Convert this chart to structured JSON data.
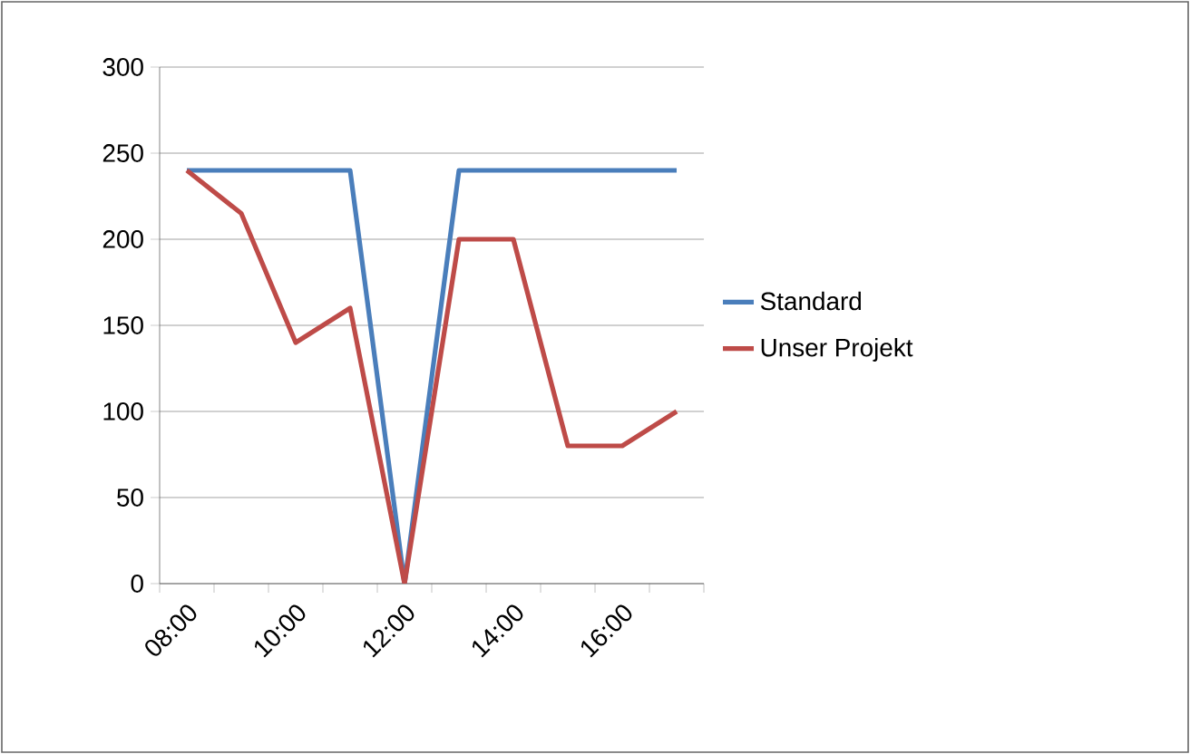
{
  "chart_data": {
    "type": "line",
    "categories": [
      "08:00",
      null,
      "10:00",
      null,
      "12:00",
      null,
      "14:00",
      null,
      "16:00",
      null
    ],
    "series": [
      {
        "name": "Standard",
        "color": "#4a7ebb",
        "values": [
          240,
          240,
          240,
          240,
          0,
          240,
          240,
          240,
          240,
          240
        ]
      },
      {
        "name": "Unser Projekt",
        "color": "#be4b48",
        "values": [
          240,
          215,
          140,
          160,
          0,
          200,
          200,
          80,
          80,
          100
        ]
      }
    ],
    "ylim": [
      0,
      300
    ],
    "yticks": [
      0,
      50,
      100,
      150,
      200,
      250,
      300
    ],
    "grid": "y",
    "legend": "right",
    "marker": "none",
    "line_style": "solid"
  }
}
